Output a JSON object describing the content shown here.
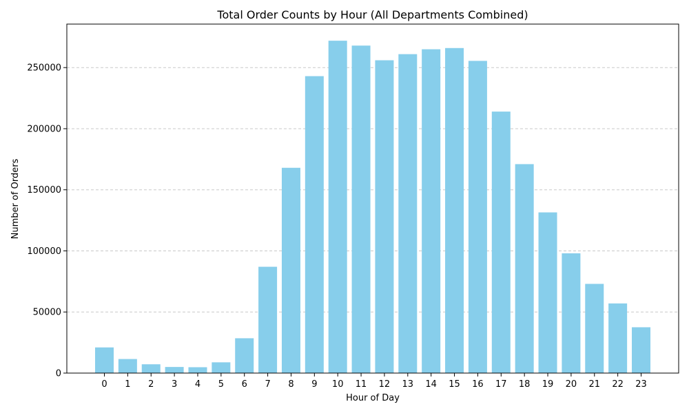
{
  "chart_data": {
    "type": "bar",
    "title": "Total Order Counts by Hour (All Departments Combined)",
    "xlabel": "Hour of Day",
    "ylabel": "Number of Orders",
    "categories": [
      "0",
      "1",
      "2",
      "3",
      "4",
      "5",
      "6",
      "7",
      "8",
      "9",
      "10",
      "11",
      "12",
      "13",
      "14",
      "15",
      "16",
      "17",
      "18",
      "19",
      "20",
      "21",
      "22",
      "23"
    ],
    "values": [
      21000,
      11500,
      7200,
      5000,
      4800,
      8800,
      28500,
      87000,
      168000,
      243000,
      272000,
      268000,
      256000,
      261000,
      265000,
      266000,
      255500,
      214000,
      171000,
      131500,
      98000,
      73000,
      57000,
      37500
    ],
    "yticks": [
      0,
      50000,
      100000,
      150000,
      200000,
      250000
    ],
    "ylim": [
      0,
      285600
    ],
    "grid": "y",
    "bar_color": "#87CEEB",
    "grid_color": "#c8c8c8"
  }
}
